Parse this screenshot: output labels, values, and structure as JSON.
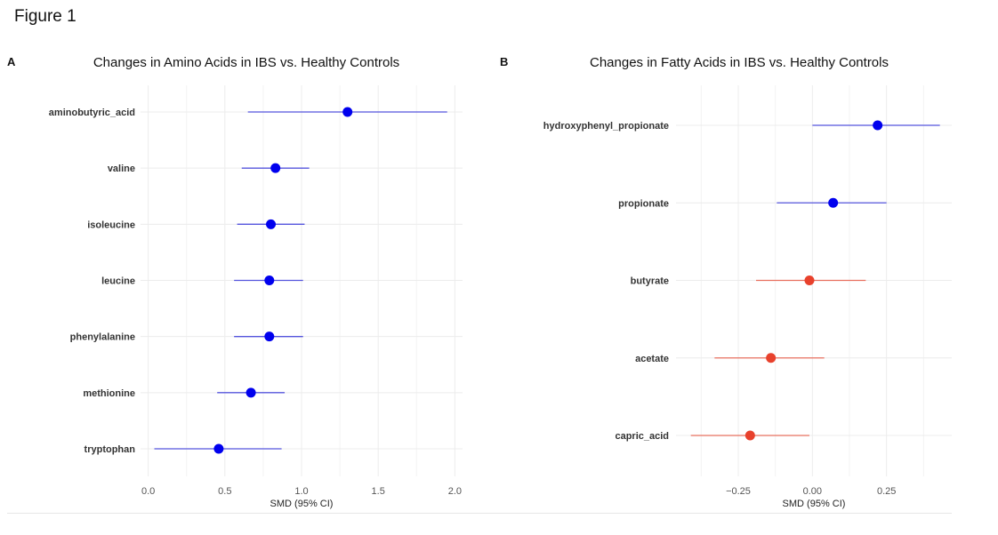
{
  "figure_title": "Figure 1",
  "panels": [
    {
      "letter": "A"
    },
    {
      "letter": "B"
    }
  ],
  "colors": {
    "positive": "#0000ee",
    "positive_line": "#5555dd",
    "negative": "#e8412c",
    "negative_line": "#e8705f",
    "grid": "#ececec"
  },
  "chart_data": [
    {
      "type": "scatter",
      "subtype": "forest",
      "title": "Changes in Amino Acids in IBS vs. Healthy Controls",
      "xlabel": "SMD (95% CI)",
      "ylabel": "",
      "xlim": [
        -0.05,
        2.05
      ],
      "xticks": [
        0.0,
        0.5,
        1.0,
        1.5,
        2.0
      ],
      "xtick_labels": [
        "0.0",
        "0.5",
        "1.0",
        "1.5",
        "2.0"
      ],
      "grid": true,
      "categories": [
        "aminobutyric_acid",
        "valine",
        "isoleucine",
        "leucine",
        "phenylalanine",
        "methionine",
        "tryptophan"
      ],
      "estimates": [
        1.3,
        0.83,
        0.8,
        0.79,
        0.79,
        0.67,
        0.46
      ],
      "ci_lower": [
        0.65,
        0.61,
        0.58,
        0.56,
        0.56,
        0.45,
        0.04
      ],
      "ci_upper": [
        1.95,
        1.05,
        1.02,
        1.01,
        1.01,
        0.89,
        0.87
      ]
    },
    {
      "type": "scatter",
      "subtype": "forest",
      "title": "Changes in Fatty Acids in IBS vs. Healthy Controls",
      "xlabel": "SMD (95% CI)",
      "ylabel": "",
      "xlim": [
        -0.46,
        0.47
      ],
      "xticks": [
        -0.25,
        0.0,
        0.25
      ],
      "xtick_labels": [
        "−0.25",
        "0.00",
        "0.25"
      ],
      "grid": true,
      "categories": [
        "hydroxyphenyl_propionate",
        "propionate",
        "butyrate",
        "acetate",
        "capric_acid"
      ],
      "estimates": [
        0.22,
        0.07,
        -0.01,
        -0.14,
        -0.21
      ],
      "ci_lower": [
        0.0,
        -0.12,
        -0.19,
        -0.33,
        -0.41
      ],
      "ci_upper": [
        0.43,
        0.25,
        0.18,
        0.04,
        -0.01
      ]
    }
  ]
}
